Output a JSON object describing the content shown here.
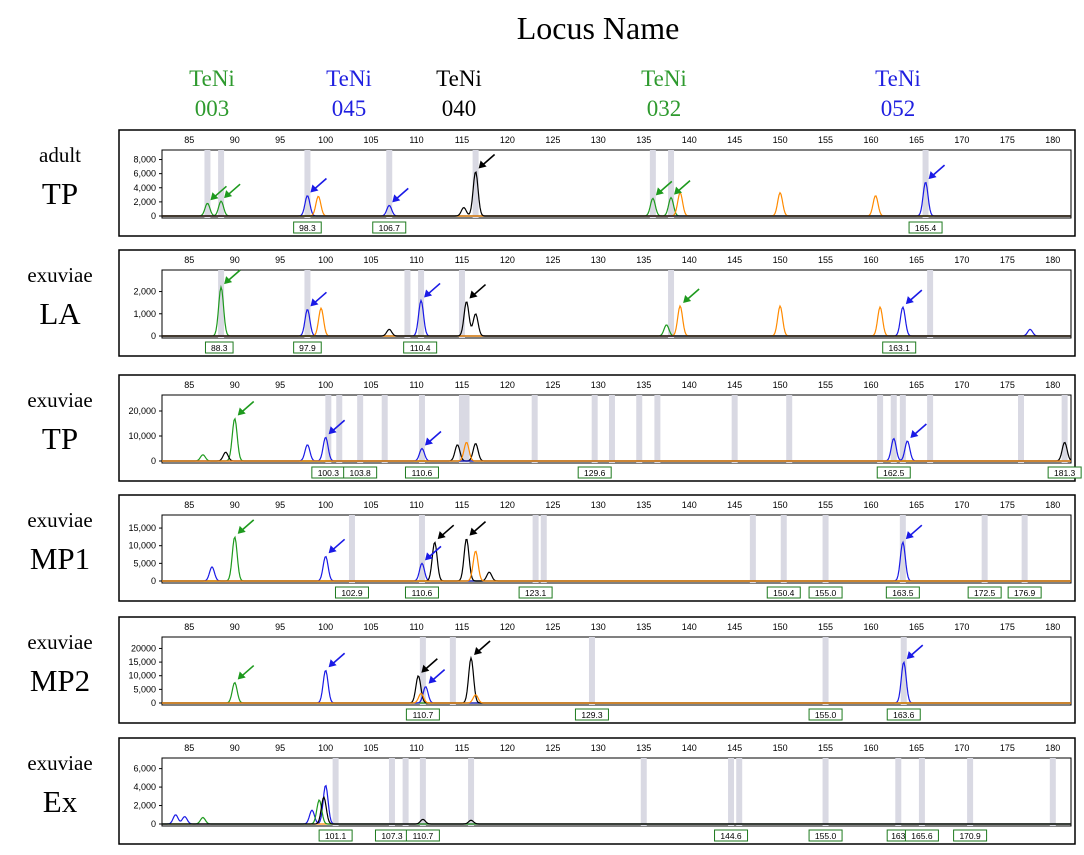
{
  "figure_title": "Locus Name",
  "loci": [
    {
      "name": "TeNi",
      "num": "003",
      "color": "#2e9a2e"
    },
    {
      "name": "TeNi",
      "num": "045",
      "color": "#1f1fe0"
    },
    {
      "name": "TeNi",
      "num": "040",
      "color": "#000000"
    },
    {
      "name": "TeNi",
      "num": "032",
      "color": "#2e9a2e"
    },
    {
      "name": "TeNi",
      "num": "052",
      "color": "#1f1fe0"
    }
  ],
  "colors": {
    "green": "#1e9a1e",
    "blue": "#1a1ae6",
    "black": "#000000",
    "orange": "#ff8a00",
    "red": "#e00000",
    "bin": "#d9d9e3",
    "frame": "#000000"
  },
  "chart_data": [
    {
      "type": "line",
      "category": "adult",
      "name": "TP",
      "xticks": [
        85,
        90,
        95,
        100,
        105,
        110,
        115,
        120,
        125,
        130,
        135,
        140,
        145,
        150,
        155,
        160,
        165,
        170,
        175,
        180
      ],
      "xlim": [
        82,
        182
      ],
      "yticks": [
        0,
        2000,
        4000,
        6000,
        8000
      ],
      "ytick_labels": [
        "0",
        "2,000",
        "4,000",
        "6,000",
        "8,000"
      ],
      "ylim": [
        0,
        8500
      ],
      "bins": [
        87,
        88.5,
        98,
        107,
        116.5,
        136,
        138,
        166
      ],
      "peaks": [
        {
          "channel": "green",
          "x": 87,
          "y": 1800
        },
        {
          "channel": "green",
          "x": 88.5,
          "y": 2100
        },
        {
          "channel": "blue",
          "x": 98,
          "y": 2900
        },
        {
          "channel": "orange",
          "x": 99.2,
          "y": 2800
        },
        {
          "channel": "blue",
          "x": 107,
          "y": 1500
        },
        {
          "channel": "black",
          "x": 116.5,
          "y": 6300
        },
        {
          "channel": "black",
          "x": 115.2,
          "y": 1200
        },
        {
          "channel": "green",
          "x": 136,
          "y": 2500
        },
        {
          "channel": "green",
          "x": 138,
          "y": 2600
        },
        {
          "channel": "orange",
          "x": 139,
          "y": 3300
        },
        {
          "channel": "orange",
          "x": 150,
          "y": 3300
        },
        {
          "channel": "orange",
          "x": 160.5,
          "y": 2900
        },
        {
          "channel": "blue",
          "x": 166,
          "y": 4800
        }
      ],
      "arrows": [
        {
          "color": "green",
          "x": 87,
          "y": 1800
        },
        {
          "color": "green",
          "x": 88.5,
          "y": 2100
        },
        {
          "color": "blue",
          "x": 98,
          "y": 2900
        },
        {
          "color": "blue",
          "x": 107,
          "y": 1500
        },
        {
          "color": "black",
          "x": 116.5,
          "y": 6300
        },
        {
          "color": "green",
          "x": 136,
          "y": 2500
        },
        {
          "color": "green",
          "x": 138,
          "y": 2600
        },
        {
          "color": "blue",
          "x": 166,
          "y": 4800
        }
      ],
      "size_labels": [
        {
          "x": 98,
          "label": "98.3"
        },
        {
          "x": 107,
          "label": "106.7"
        },
        {
          "x": 166,
          "label": "165.4"
        }
      ]
    },
    {
      "type": "line",
      "category": "exuviae",
      "name": "LA",
      "xticks": [
        85,
        90,
        95,
        100,
        105,
        110,
        115,
        120,
        125,
        130,
        135,
        140,
        145,
        150,
        155,
        160,
        165,
        170,
        175,
        180
      ],
      "xlim": [
        82,
        182
      ],
      "yticks": [
        0,
        1000,
        2000
      ],
      "ytick_labels": [
        "0",
        "1,000",
        "2,000"
      ],
      "ylim": [
        0,
        2700
      ],
      "bins": [
        88.5,
        98,
        109,
        110.5,
        115,
        138,
        166.5
      ],
      "peaks": [
        {
          "channel": "green",
          "x": 88.5,
          "y": 2200
        },
        {
          "channel": "blue",
          "x": 98,
          "y": 1200
        },
        {
          "channel": "orange",
          "x": 99.5,
          "y": 1250
        },
        {
          "channel": "blue",
          "x": 110.5,
          "y": 1600
        },
        {
          "channel": "black",
          "x": 115.5,
          "y": 1550
        },
        {
          "channel": "black",
          "x": 116.5,
          "y": 1000
        },
        {
          "channel": "black",
          "x": 107,
          "y": 300
        },
        {
          "channel": "green",
          "x": 137.5,
          "y": 500
        },
        {
          "channel": "orange",
          "x": 139,
          "y": 1350
        },
        {
          "channel": "orange",
          "x": 150,
          "y": 1350
        },
        {
          "channel": "orange",
          "x": 161,
          "y": 1300
        },
        {
          "channel": "blue",
          "x": 163.5,
          "y": 1300
        },
        {
          "channel": "blue",
          "x": 177.5,
          "y": 300
        }
      ],
      "arrows": [
        {
          "color": "green",
          "x": 88.5,
          "y": 2200
        },
        {
          "color": "blue",
          "x": 98,
          "y": 1200
        },
        {
          "color": "blue",
          "x": 110.5,
          "y": 1600
        },
        {
          "color": "black",
          "x": 115.5,
          "y": 1550
        },
        {
          "color": "green",
          "x": 139,
          "y": 1350
        },
        {
          "color": "blue",
          "x": 163.5,
          "y": 1300
        }
      ],
      "size_labels": [
        {
          "x": 88.3,
          "label": "88.3"
        },
        {
          "x": 98,
          "label": "97.9"
        },
        {
          "x": 110.4,
          "label": "110.4"
        },
        {
          "x": 163.1,
          "label": "163.1"
        }
      ]
    },
    {
      "type": "line",
      "category": "exuviae",
      "name": "TP",
      "xticks": [
        85,
        90,
        95,
        100,
        105,
        110,
        115,
        120,
        125,
        130,
        135,
        140,
        145,
        150,
        155,
        160,
        165,
        170,
        175,
        180
      ],
      "xlim": [
        82,
        182
      ],
      "yticks": [
        0,
        10000,
        20000
      ],
      "ytick_labels": [
        "0",
        "10,000",
        "20,000"
      ],
      "ylim": [
        0,
        24000
      ],
      "bins": [
        100.3,
        101.5,
        103.8,
        106.5,
        110.6,
        115,
        115.5,
        123,
        129.6,
        131.5,
        134.5,
        136.5,
        145,
        151,
        161,
        162.5,
        163.5,
        166.5,
        176.5,
        181.3
      ],
      "peaks": [
        {
          "channel": "green",
          "x": 90,
          "y": 17000
        },
        {
          "channel": "black",
          "x": 89,
          "y": 3500
        },
        {
          "channel": "green",
          "x": 86.5,
          "y": 2500
        },
        {
          "channel": "blue",
          "x": 98,
          "y": 6500
        },
        {
          "channel": "blue",
          "x": 100,
          "y": 9500
        },
        {
          "channel": "blue",
          "x": 110.6,
          "y": 5000
        },
        {
          "channel": "black",
          "x": 114.5,
          "y": 6500
        },
        {
          "channel": "orange",
          "x": 115.5,
          "y": 7500
        },
        {
          "channel": "black",
          "x": 116.5,
          "y": 7000
        },
        {
          "channel": "blue",
          "x": 162.5,
          "y": 9000
        },
        {
          "channel": "blue",
          "x": 164,
          "y": 8000
        },
        {
          "channel": "black",
          "x": 181.3,
          "y": 7500
        }
      ],
      "arrows": [
        {
          "color": "green",
          "x": 90,
          "y": 17000
        },
        {
          "color": "blue",
          "x": 100,
          "y": 9500
        },
        {
          "color": "blue",
          "x": 110.6,
          "y": 5000
        },
        {
          "color": "blue",
          "x": 164,
          "y": 8000
        }
      ],
      "size_labels": [
        {
          "x": 100.3,
          "label": "100.3"
        },
        {
          "x": 103.8,
          "label": "103.8"
        },
        {
          "x": 110.6,
          "label": "110.6"
        },
        {
          "x": 129.6,
          "label": "129.6"
        },
        {
          "x": 162.5,
          "label": "162.5"
        },
        {
          "x": 181.3,
          "label": "181.3"
        }
      ]
    },
    {
      "type": "line",
      "category": "exuviae",
      "name": "MP1",
      "xticks": [
        85,
        90,
        95,
        100,
        105,
        110,
        115,
        120,
        125,
        130,
        135,
        140,
        145,
        150,
        155,
        160,
        165,
        170,
        175,
        180
      ],
      "xlim": [
        82,
        182
      ],
      "yticks": [
        0,
        5000,
        10000,
        15000
      ],
      "ytick_labels": [
        "0",
        "5,000",
        "10,000",
        "15,000"
      ],
      "ylim": [
        0,
        17000
      ],
      "bins": [
        102.9,
        110.6,
        123.1,
        124,
        147,
        150.4,
        155,
        163.5,
        172.5,
        176.9
      ],
      "peaks": [
        {
          "channel": "green",
          "x": 90,
          "y": 12500
        },
        {
          "channel": "blue",
          "x": 87.5,
          "y": 4000
        },
        {
          "channel": "blue",
          "x": 100,
          "y": 7000
        },
        {
          "channel": "blue",
          "x": 110.6,
          "y": 5000
        },
        {
          "channel": "black",
          "x": 112,
          "y": 11000
        },
        {
          "channel": "black",
          "x": 115.5,
          "y": 12000
        },
        {
          "channel": "orange",
          "x": 116.5,
          "y": 8500
        },
        {
          "channel": "black",
          "x": 118,
          "y": 2500
        },
        {
          "channel": "blue",
          "x": 163.5,
          "y": 11000
        }
      ],
      "arrows": [
        {
          "color": "green",
          "x": 90,
          "y": 12500
        },
        {
          "color": "blue",
          "x": 100,
          "y": 7000
        },
        {
          "color": "blue",
          "x": 110.6,
          "y": 5000
        },
        {
          "color": "black",
          "x": 112,
          "y": 11000
        },
        {
          "color": "black",
          "x": 115.5,
          "y": 12000
        },
        {
          "color": "blue",
          "x": 163.5,
          "y": 11000
        }
      ],
      "size_labels": [
        {
          "x": 102.9,
          "label": "102.9"
        },
        {
          "x": 110.6,
          "label": "110.6"
        },
        {
          "x": 123.1,
          "label": "123.1"
        },
        {
          "x": 150.4,
          "label": "150.4"
        },
        {
          "x": 155,
          "label": "155.0"
        },
        {
          "x": 163.5,
          "label": "163.5"
        },
        {
          "x": 172.5,
          "label": "172.5"
        },
        {
          "x": 176.9,
          "label": "176.9"
        }
      ]
    },
    {
      "type": "line",
      "category": "exuviae",
      "name": "MP2",
      "xticks": [
        85,
        90,
        95,
        100,
        105,
        110,
        115,
        120,
        125,
        130,
        135,
        140,
        145,
        150,
        155,
        160,
        165,
        170,
        175,
        180
      ],
      "xlim": [
        82,
        182
      ],
      "yticks": [
        0,
        5000,
        10000,
        15000,
        20000
      ],
      "ytick_labels": [
        "0",
        "5,000",
        "10,000",
        "15,000",
        "20000"
      ],
      "ylim": [
        0,
        22000
      ],
      "bins": [
        110.7,
        114,
        129.3,
        155,
        163.6
      ],
      "peaks": [
        {
          "channel": "green",
          "x": 90,
          "y": 7500
        },
        {
          "channel": "blue",
          "x": 100,
          "y": 12000
        },
        {
          "channel": "black",
          "x": 110.2,
          "y": 10000
        },
        {
          "channel": "blue",
          "x": 111,
          "y": 6000
        },
        {
          "channel": "orange",
          "x": 110.5,
          "y": 3500
        },
        {
          "channel": "black",
          "x": 116,
          "y": 16500
        },
        {
          "channel": "orange",
          "x": 116.5,
          "y": 3000
        },
        {
          "channel": "blue",
          "x": 163.6,
          "y": 15000
        }
      ],
      "arrows": [
        {
          "color": "green",
          "x": 90,
          "y": 7500
        },
        {
          "color": "blue",
          "x": 100,
          "y": 12000
        },
        {
          "color": "black",
          "x": 110.2,
          "y": 10000
        },
        {
          "color": "blue",
          "x": 111,
          "y": 6000
        },
        {
          "color": "black",
          "x": 116,
          "y": 16500
        },
        {
          "color": "blue",
          "x": 163.6,
          "y": 15000
        }
      ],
      "size_labels": [
        {
          "x": 110.7,
          "label": "110.7"
        },
        {
          "x": 129.3,
          "label": "129.3"
        },
        {
          "x": 155,
          "label": "155.0"
        },
        {
          "x": 163.6,
          "label": "163.6"
        }
      ]
    },
    {
      "type": "line",
      "category": "exuviae",
      "name": "Ex",
      "xticks": [
        85,
        90,
        95,
        100,
        105,
        110,
        115,
        120,
        125,
        130,
        135,
        140,
        145,
        150,
        155,
        160,
        165,
        170,
        175,
        180
      ],
      "xlim": [
        82,
        182
      ],
      "yticks": [
        0,
        2000,
        4000,
        6000
      ],
      "ytick_labels": [
        "0",
        "2,000",
        "4,000",
        "6,000"
      ],
      "ylim": [
        0,
        6500
      ],
      "bins": [
        101.1,
        107.3,
        108.8,
        110.7,
        116,
        135,
        144.6,
        145.5,
        155,
        163,
        165.6,
        170.9,
        180
      ],
      "peaks": [
        {
          "channel": "blue",
          "x": 83.5,
          "y": 1000
        },
        {
          "channel": "blue",
          "x": 84.5,
          "y": 800
        },
        {
          "channel": "green",
          "x": 86.5,
          "y": 700
        },
        {
          "channel": "blue",
          "x": 100,
          "y": 4200
        },
        {
          "channel": "green",
          "x": 99.3,
          "y": 2600
        },
        {
          "channel": "black",
          "x": 99.8,
          "y": 2900
        },
        {
          "channel": "blue",
          "x": 98.5,
          "y": 1500
        },
        {
          "channel": "black",
          "x": 110.7,
          "y": 500
        },
        {
          "channel": "black",
          "x": 116,
          "y": 400
        }
      ],
      "arrows": [],
      "size_labels": [
        {
          "x": 101.1,
          "label": "101.1"
        },
        {
          "x": 107.3,
          "label": "107.3"
        },
        {
          "x": 110.7,
          "label": "110.7"
        },
        {
          "x": 144.6,
          "label": "144.6"
        },
        {
          "x": 155,
          "label": "155.0"
        },
        {
          "x": 163,
          "label": "163"
        },
        {
          "x": 165.6,
          "label": "165.6"
        },
        {
          "x": 170.9,
          "label": "170.9"
        }
      ]
    }
  ]
}
